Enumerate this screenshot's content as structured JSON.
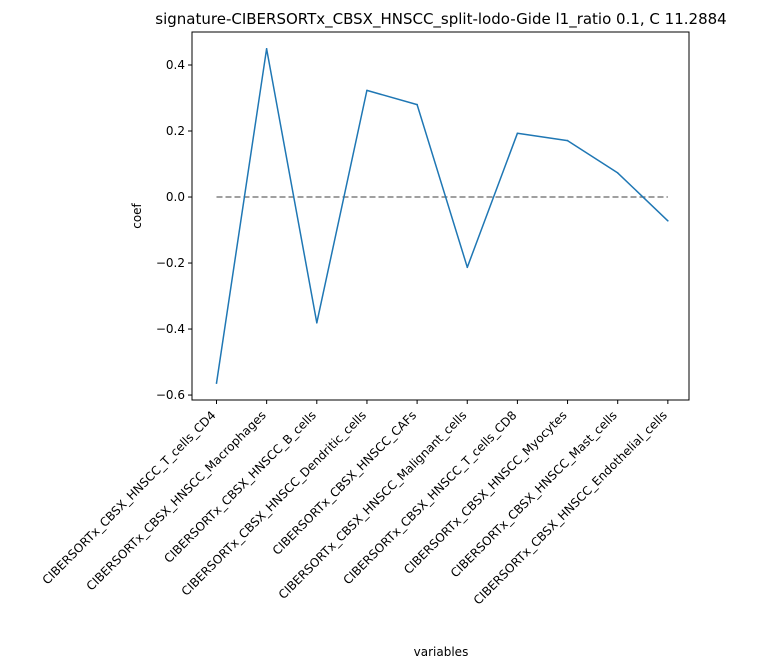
{
  "chart_data": {
    "type": "line",
    "title": "signature-CIBERSORTx_CBSX_HNSCC_split-lodo-Gide l1_ratio 0.1, C 11.2884",
    "xlabel": "variables",
    "ylabel": "coef",
    "categories": [
      "CIBERSORTx_CBSX_HNSCC_T_cells_CD4",
      "CIBERSORTx_CBSX_HNSCC_Macrophages",
      "CIBERSORTx_CBSX_HNSCC_B_cells",
      "CIBERSORTx_CBSX_HNSCC_Dendritic_cells",
      "CIBERSORTx_CBSX_HNSCC_CAFs",
      "CIBERSORTx_CBSX_HNSCC_Malignant_cells",
      "CIBERSORTx_CBSX_HNSCC_T_cells_CD8",
      "CIBERSORTx_CBSX_HNSCC_Myocytes",
      "CIBERSORTx_CBSX_HNSCC_Mast_cells",
      "CIBERSORTx_CBSX_HNSCC_Endothelial_cells"
    ],
    "series": [
      {
        "values": [
          -0.564,
          0.449,
          -0.381,
          0.323,
          0.28,
          -0.213,
          0.193,
          0.171,
          0.073,
          -0.072
        ],
        "color": "#1f77b4"
      }
    ],
    "reference_line": {
      "y": 0.0,
      "style": "dashed",
      "color": "#808080"
    },
    "yticks": [
      -0.6,
      -0.4,
      -0.2,
      0.0,
      0.2,
      0.4
    ],
    "ytick_labels": [
      "−0.6",
      "−0.4",
      "−0.2",
      "0.0",
      "0.2",
      "0.4"
    ],
    "ylim": [
      -0.615,
      0.5
    ],
    "grid": false,
    "legend": "none"
  }
}
